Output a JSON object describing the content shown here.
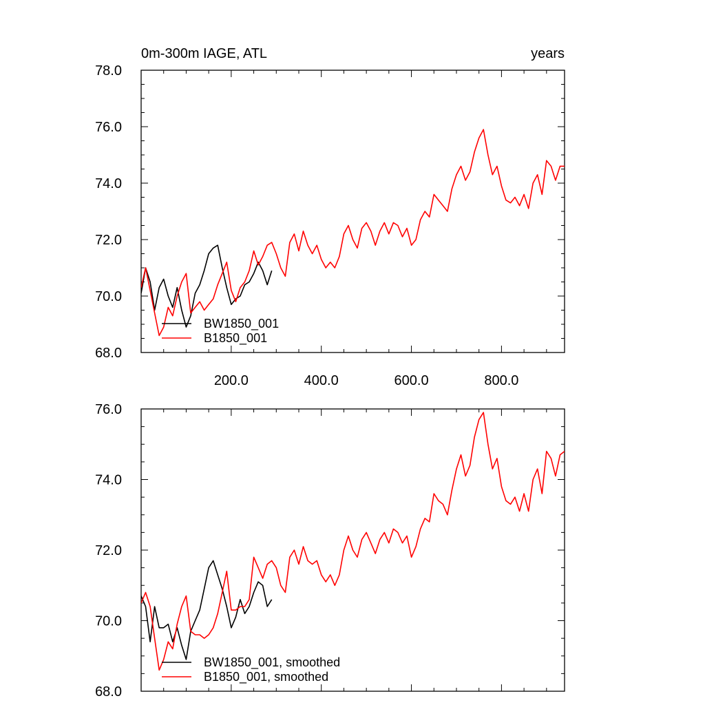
{
  "chart_data": [
    {
      "type": "line",
      "title": "0m-300m IAGE, ATL",
      "units": "years",
      "xlim": [
        0,
        940
      ],
      "ylim": [
        68.0,
        78.0
      ],
      "x_ticks": [
        "200.0",
        "400.0",
        "600.0",
        "800.0"
      ],
      "y_ticks": [
        "68.0",
        "70.0",
        "72.0",
        "74.0",
        "76.0",
        "78.0"
      ],
      "legend": [
        "BW1850_001",
        "B1850_001"
      ],
      "series": [
        {
          "name": "BW1850_001",
          "color": "#000000",
          "x": [
            0,
            10,
            20,
            30,
            40,
            50,
            60,
            70,
            80,
            90,
            100,
            110,
            120,
            130,
            140,
            150,
            160,
            170,
            180,
            190,
            200,
            210,
            220,
            230,
            240,
            250,
            260,
            270,
            280,
            290
          ],
          "values": [
            70.1,
            71.0,
            70.5,
            69.5,
            70.3,
            70.6,
            70.0,
            69.6,
            70.3,
            69.5,
            68.9,
            69.3,
            70.1,
            70.4,
            70.9,
            71.5,
            71.7,
            71.8,
            71.0,
            70.3,
            69.7,
            69.9,
            70.0,
            70.4,
            70.5,
            70.8,
            71.2,
            70.9,
            70.4,
            70.9
          ]
        },
        {
          "name": "B1850_001",
          "color": "#ff0000",
          "x": [
            0,
            10,
            20,
            30,
            40,
            50,
            60,
            70,
            80,
            90,
            100,
            110,
            120,
            130,
            140,
            150,
            160,
            170,
            180,
            190,
            200,
            210,
            220,
            230,
            240,
            250,
            260,
            270,
            280,
            290,
            300,
            310,
            320,
            330,
            340,
            350,
            360,
            370,
            380,
            390,
            400,
            410,
            420,
            430,
            440,
            450,
            460,
            470,
            480,
            490,
            500,
            510,
            520,
            530,
            540,
            550,
            560,
            570,
            580,
            590,
            600,
            610,
            620,
            630,
            640,
            650,
            660,
            670,
            680,
            690,
            700,
            710,
            720,
            730,
            740,
            750,
            760,
            770,
            780,
            790,
            800,
            810,
            820,
            830,
            840,
            850,
            860,
            870,
            880,
            890,
            900,
            910,
            920,
            930,
            940
          ],
          "values": [
            70.3,
            71.0,
            70.2,
            69.4,
            68.6,
            68.9,
            69.6,
            69.3,
            70.0,
            70.5,
            70.8,
            69.4,
            69.6,
            69.8,
            69.5,
            69.7,
            69.9,
            70.4,
            70.8,
            71.2,
            70.2,
            69.8,
            70.3,
            70.5,
            70.9,
            71.6,
            71.1,
            71.4,
            71.8,
            71.9,
            71.5,
            71.0,
            70.7,
            71.9,
            72.2,
            71.6,
            72.3,
            71.8,
            71.5,
            71.8,
            71.3,
            71.0,
            71.2,
            71.0,
            71.4,
            72.2,
            72.5,
            72.0,
            71.7,
            72.4,
            72.6,
            72.3,
            71.8,
            72.3,
            72.6,
            72.2,
            72.6,
            72.5,
            72.1,
            72.4,
            71.8,
            72.0,
            72.7,
            73.0,
            72.8,
            73.6,
            73.4,
            73.2,
            73.0,
            73.8,
            74.3,
            74.6,
            74.1,
            74.4,
            75.1,
            75.6,
            75.9,
            75.0,
            74.3,
            74.6,
            73.9,
            73.4,
            73.3,
            73.5,
            73.2,
            73.6,
            73.1,
            74.0,
            74.3,
            73.6,
            74.8,
            74.6,
            74.1,
            74.6,
            74.6
          ]
        }
      ]
    },
    {
      "type": "line",
      "title": "",
      "xlim": [
        0,
        940
      ],
      "ylim": [
        68.0,
        76.0
      ],
      "y_ticks": [
        "68.0",
        "70.0",
        "72.0",
        "74.0",
        "76.0"
      ],
      "legend": [
        "BW1850_001, smoothed",
        "B1850_001, smoothed"
      ],
      "series": [
        {
          "name": "BW1850_001, smoothed",
          "color": "#000000",
          "x": [
            0,
            10,
            20,
            30,
            40,
            50,
            60,
            70,
            80,
            90,
            100,
            110,
            120,
            130,
            140,
            150,
            160,
            170,
            180,
            190,
            200,
            210,
            220,
            230,
            240,
            250,
            260,
            270,
            280,
            290
          ],
          "values": [
            70.7,
            70.4,
            69.4,
            70.4,
            69.8,
            69.8,
            69.9,
            69.4,
            69.8,
            69.3,
            68.9,
            69.7,
            70.0,
            70.3,
            70.9,
            71.5,
            71.7,
            71.3,
            70.9,
            70.4,
            69.8,
            70.1,
            70.6,
            70.2,
            70.4,
            70.8,
            71.1,
            71.0,
            70.4,
            70.6
          ]
        },
        {
          "name": "B1850_001, smoothed",
          "color": "#ff0000",
          "x": [
            0,
            10,
            20,
            30,
            40,
            50,
            60,
            70,
            80,
            90,
            100,
            110,
            120,
            130,
            140,
            150,
            160,
            170,
            180,
            190,
            200,
            210,
            220,
            230,
            240,
            250,
            260,
            270,
            280,
            290,
            300,
            310,
            320,
            330,
            340,
            350,
            360,
            370,
            380,
            390,
            400,
            410,
            420,
            430,
            440,
            450,
            460,
            470,
            480,
            490,
            500,
            510,
            520,
            530,
            540,
            550,
            560,
            570,
            580,
            590,
            600,
            610,
            620,
            630,
            640,
            650,
            660,
            670,
            680,
            690,
            700,
            710,
            720,
            730,
            740,
            750,
            760,
            770,
            780,
            790,
            800,
            810,
            820,
            830,
            840,
            850,
            860,
            870,
            880,
            890,
            900,
            910,
            920,
            930,
            940
          ],
          "values": [
            70.5,
            70.8,
            70.4,
            69.5,
            68.6,
            68.9,
            69.4,
            69.2,
            69.9,
            70.4,
            70.7,
            69.7,
            69.6,
            69.6,
            69.5,
            69.6,
            69.8,
            70.2,
            70.8,
            71.4,
            70.3,
            70.3,
            70.4,
            70.4,
            70.6,
            71.8,
            71.5,
            71.2,
            71.6,
            71.7,
            71.5,
            71.0,
            70.8,
            71.8,
            72.0,
            71.6,
            72.1,
            71.7,
            71.6,
            71.7,
            71.3,
            71.1,
            71.3,
            71.0,
            71.3,
            72.0,
            72.4,
            72.0,
            71.8,
            72.3,
            72.5,
            72.2,
            71.9,
            72.3,
            72.5,
            72.2,
            72.6,
            72.5,
            72.2,
            72.4,
            71.8,
            72.1,
            72.6,
            72.9,
            72.8,
            73.6,
            73.4,
            73.3,
            73.0,
            73.7,
            74.3,
            74.7,
            74.1,
            74.4,
            75.2,
            75.7,
            75.9,
            75.0,
            74.3,
            74.6,
            73.8,
            73.4,
            73.3,
            73.5,
            73.1,
            73.6,
            73.1,
            74.0,
            74.3,
            73.6,
            74.8,
            74.6,
            74.1,
            74.7,
            74.8
          ]
        }
      ]
    }
  ]
}
